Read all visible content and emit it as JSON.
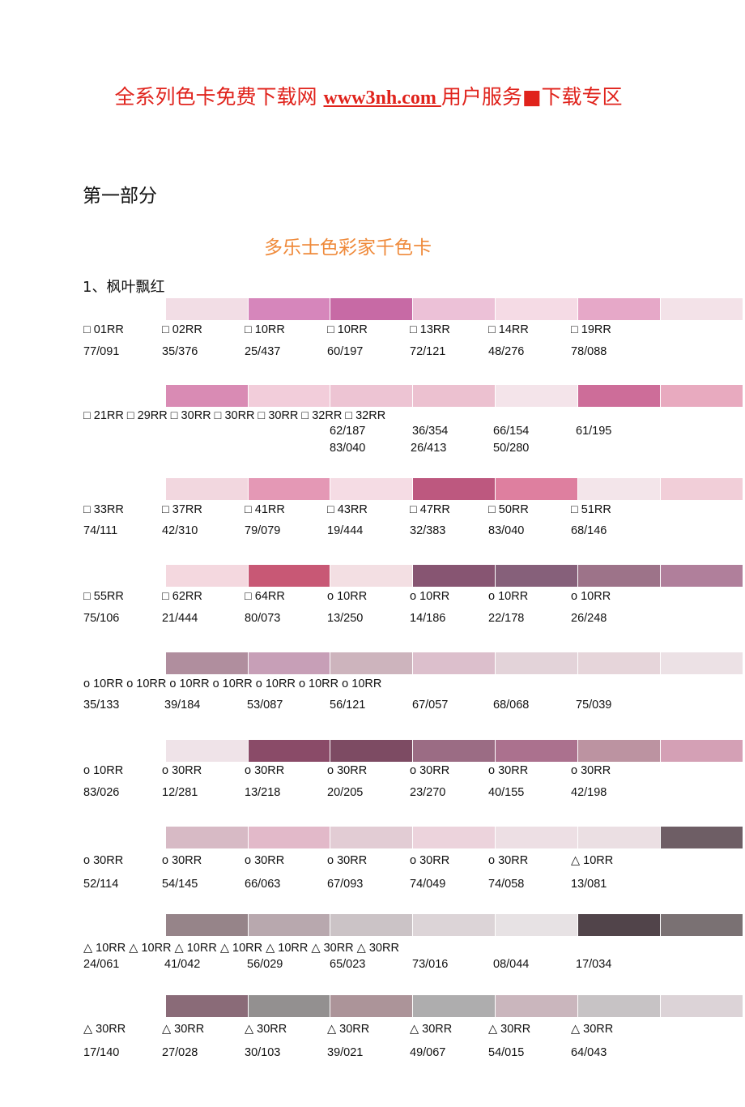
{
  "header": {
    "banner_before": "全系列色卡免费下载网 ",
    "banner_link": "www3nh.com ",
    "banner_after": "用户服务■下载专区"
  },
  "part_label": "第一部分",
  "doc_title": "多乐士色彩家千色卡",
  "section_title": "1、枫叶飘红",
  "rows": [
    {
      "swatches": [
        "#f2dde5",
        "#d686bb",
        "#c76aa5",
        "#ecc1d7",
        "#f5dbe5",
        "#e6a8c8",
        "#f3e2e8"
      ],
      "codes": [
        "□ 01RR",
        "□ 02RR",
        "□ 10RR",
        "□ 10RR",
        "□ 13RR",
        "□ 14RR",
        "□ 19RR"
      ],
      "values": [
        "77/091",
        "35/376",
        "25/437",
        "60/197",
        "72/121",
        "48/276",
        "78/088"
      ]
    },
    {
      "swatches": [
        "#d98bb4",
        "#f2cdda",
        "#edc4d3",
        "#ecc1d0",
        "#f4e4ea",
        "#cd6d99",
        "#e8aabf"
      ],
      "codes_line": "□ 21RR □ 29RR □ 30RR □ 30RR □ 30RR □ 32RR □ 32RR",
      "values_upper": [
        "62/187",
        "36/354",
        "66/154",
        "61/195"
      ],
      "values_lower": [
        "83/040",
        "26/413",
        "50/280"
      ]
    },
    {
      "swatches": [
        "#f2d7df",
        "#e498b5",
        "#f5dce4",
        "#bd587f",
        "#de7f9f",
        "#f3e5ea",
        "#f1ced8"
      ],
      "codes": [
        "□ 33RR",
        "□ 37RR",
        "□ 41RR",
        "□ 43RR",
        "□ 47RR",
        "□ 50RR",
        "□ 51RR"
      ],
      "values": [
        "74/111",
        "42/310",
        "79/079",
        "19/444",
        "32/383",
        "83/040",
        "68/146"
      ]
    },
    {
      "swatches": [
        "#f4d8df",
        "#c85875",
        "#f3dfe3",
        "#875572",
        "#86607a",
        "#9d7389",
        "#b07f9b"
      ],
      "codes": [
        "□ 55RR",
        "□ 62RR",
        "□ 64RR",
        "o 10RR",
        "o 10RR",
        "o 10RR",
        "o 10RR"
      ],
      "values": [
        "75/106",
        "21/444",
        "80/073",
        "13/250",
        "14/186",
        "22/178",
        "26/248"
      ]
    },
    {
      "swatches": [
        "#b08e9e",
        "#c79fb7",
        "#cdb4bd",
        "#dcbfcc",
        "#e3d3d9",
        "#e6d5da",
        "#ece1e5"
      ],
      "codes_line": "o 10RR o 10RR o 10RR o 10RR o 10RR o 10RR o 10RR",
      "values": [
        "35/133",
        "39/184",
        "53/087",
        "56/121",
        "67/057",
        "68/068",
        "75/039"
      ]
    },
    {
      "swatches": [
        "#efe3e8",
        "#8a4b68",
        "#7d4b63",
        "#9b6c84",
        "#ab718e",
        "#bc93a1",
        "#d4a0b5"
      ],
      "codes": [
        "o 10RR",
        "o 30RR",
        "o 30RR",
        "o 30RR",
        "o 30RR",
        "o 30RR",
        "o 30RR"
      ],
      "values": [
        "83/026",
        "12/281",
        "13/218",
        "20/205",
        "23/270",
        "40/155",
        "42/198"
      ]
    },
    {
      "swatches": [
        "#d7bac5",
        "#e2b9c9",
        "#e2ccd4",
        "#ecd3dc",
        "#eddfe4",
        "#ebdfe3",
        "#6e5e65"
      ],
      "codes": [
        "o 30RR",
        "o 30RR",
        "o 30RR",
        "o 30RR",
        "o 30RR",
        "o 30RR",
        "△ 10RR"
      ],
      "values": [
        "52/114",
        "54/145",
        "66/063",
        "67/093",
        "74/049",
        "74/058",
        "13/081"
      ]
    },
    {
      "swatches": [
        "#968489",
        "#b8a8ae",
        "#cbc3c6",
        "#dcd4d7",
        "#e7e2e4",
        "#51444a",
        "#7a7173"
      ],
      "codes_line": "△ 10RR △ 10RR △ 10RR △ 10RR △ 10RR △ 30RR △ 30RR",
      "values": [
        "24/061",
        "41/042",
        "56/029",
        "65/023",
        "73/016",
        "08/044",
        "17/034"
      ]
    },
    {
      "swatches": [
        "#8a6b78",
        "#939090",
        "#ac9499",
        "#aeadae",
        "#cab6bd",
        "#c7c3c5",
        "#dcd3d7"
      ],
      "codes": [
        "△ 30RR",
        "△ 30RR",
        "△ 30RR",
        "△ 30RR",
        "△ 30RR",
        "△ 30RR",
        "△ 30RR"
      ],
      "values": [
        "17/140",
        "27/028",
        "30/103",
        "39/021",
        "49/067",
        "54/015",
        "64/043"
      ]
    }
  ]
}
